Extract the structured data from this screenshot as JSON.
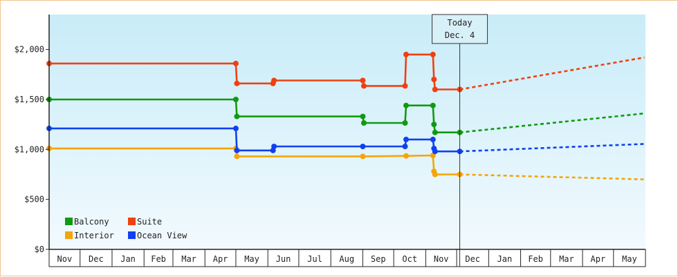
{
  "chart_data": {
    "type": "line",
    "x_axis_type": "date",
    "ylim": [
      0,
      2350
    ],
    "y_ticks": [
      {
        "value": 0,
        "label": "$0"
      },
      {
        "value": 500,
        "label": "$500"
      },
      {
        "value": 1000,
        "label": "$1,000"
      },
      {
        "value": 1500,
        "label": "$1,500"
      },
      {
        "value": 2000,
        "label": "$2,000"
      }
    ],
    "x_range": [
      "2014-11-01",
      "2016-05-31"
    ],
    "months": [
      {
        "label": "Nov",
        "start": "2014-11-01"
      },
      {
        "label": "Dec",
        "start": "2014-12-01"
      },
      {
        "label": "Jan",
        "start": "2015-01-01"
      },
      {
        "label": "Feb",
        "start": "2015-02-01"
      },
      {
        "label": "Mar",
        "start": "2015-03-01"
      },
      {
        "label": "Apr",
        "start": "2015-04-01"
      },
      {
        "label": "May",
        "start": "2015-05-01"
      },
      {
        "label": "Jun",
        "start": "2015-06-01"
      },
      {
        "label": "Jul",
        "start": "2015-07-01"
      },
      {
        "label": "Aug",
        "start": "2015-08-01"
      },
      {
        "label": "Sep",
        "start": "2015-09-01"
      },
      {
        "label": "Oct",
        "start": "2015-10-01"
      },
      {
        "label": "Nov",
        "start": "2015-11-01"
      },
      {
        "label": "Dec",
        "start": "2015-12-01"
      },
      {
        "label": "Jan",
        "start": "2016-01-01"
      },
      {
        "label": "Feb",
        "start": "2016-02-01"
      },
      {
        "label": "Mar",
        "start": "2016-03-01"
      },
      {
        "label": "Apr",
        "start": "2016-04-01"
      },
      {
        "label": "May",
        "start": "2016-05-01"
      }
    ],
    "today": {
      "date": "2015-12-04",
      "line1": "Today",
      "line2": "Dec. 4"
    },
    "legend_position": "bottom-left",
    "series": [
      {
        "name": "Balcony",
        "color": "#0f9a0f",
        "points": [
          {
            "x": "2014-11-01",
            "y": 1500
          },
          {
            "x": "2015-05-01",
            "y": 1500
          },
          {
            "x": "2015-05-02",
            "y": 1330
          },
          {
            "x": "2015-09-01",
            "y": 1330
          },
          {
            "x": "2015-09-02",
            "y": 1265
          },
          {
            "x": "2015-10-12",
            "y": 1265
          },
          {
            "x": "2015-10-13",
            "y": 1440
          },
          {
            "x": "2015-11-08",
            "y": 1440
          },
          {
            "x": "2015-11-09",
            "y": 1250
          },
          {
            "x": "2015-11-10",
            "y": 1170
          },
          {
            "x": "2015-12-04",
            "y": 1170
          }
        ],
        "forecast": [
          {
            "x": "2015-12-04",
            "y": 1170
          },
          {
            "x": "2016-05-31",
            "y": 1360
          }
        ]
      },
      {
        "name": "Suite",
        "color": "#f04010",
        "points": [
          {
            "x": "2014-11-01",
            "y": 1860
          },
          {
            "x": "2015-05-01",
            "y": 1860
          },
          {
            "x": "2015-05-02",
            "y": 1660
          },
          {
            "x": "2015-06-06",
            "y": 1660
          },
          {
            "x": "2015-06-07",
            "y": 1690
          },
          {
            "x": "2015-09-01",
            "y": 1690
          },
          {
            "x": "2015-09-02",
            "y": 1635
          },
          {
            "x": "2015-10-12",
            "y": 1635
          },
          {
            "x": "2015-10-13",
            "y": 1950
          },
          {
            "x": "2015-11-08",
            "y": 1950
          },
          {
            "x": "2015-11-09",
            "y": 1700
          },
          {
            "x": "2015-11-10",
            "y": 1600
          },
          {
            "x": "2015-12-04",
            "y": 1600
          }
        ],
        "forecast": [
          {
            "x": "2015-12-04",
            "y": 1600
          },
          {
            "x": "2016-05-31",
            "y": 1920
          }
        ]
      },
      {
        "name": "Interior",
        "color": "#f5a40a",
        "points": [
          {
            "x": "2014-11-01",
            "y": 1010
          },
          {
            "x": "2015-05-01",
            "y": 1010
          },
          {
            "x": "2015-05-02",
            "y": 930
          },
          {
            "x": "2015-09-01",
            "y": 930
          },
          {
            "x": "2015-10-13",
            "y": 935
          },
          {
            "x": "2015-11-08",
            "y": 940
          },
          {
            "x": "2015-11-09",
            "y": 780
          },
          {
            "x": "2015-11-10",
            "y": 750
          },
          {
            "x": "2015-12-04",
            "y": 750
          }
        ],
        "forecast": [
          {
            "x": "2015-12-04",
            "y": 750
          },
          {
            "x": "2016-05-31",
            "y": 700
          }
        ]
      },
      {
        "name": "Ocean View",
        "color": "#1040f0",
        "points": [
          {
            "x": "2014-11-01",
            "y": 1210
          },
          {
            "x": "2015-05-01",
            "y": 1210
          },
          {
            "x": "2015-05-02",
            "y": 990
          },
          {
            "x": "2015-06-06",
            "y": 990
          },
          {
            "x": "2015-06-07",
            "y": 1030
          },
          {
            "x": "2015-09-01",
            "y": 1030
          },
          {
            "x": "2015-10-12",
            "y": 1030
          },
          {
            "x": "2015-10-13",
            "y": 1100
          },
          {
            "x": "2015-11-08",
            "y": 1100
          },
          {
            "x": "2015-11-09",
            "y": 1010
          },
          {
            "x": "2015-11-10",
            "y": 980
          },
          {
            "x": "2015-12-04",
            "y": 980
          }
        ],
        "forecast": [
          {
            "x": "2015-12-04",
            "y": 980
          },
          {
            "x": "2016-05-31",
            "y": 1055
          }
        ]
      }
    ],
    "colors": {
      "plot_top": "#c8ecf8",
      "plot_bottom": "#f2fafe",
      "frame_border": "#f2c48a",
      "axis": "#222222",
      "today_box_fill": "#d8f0f8",
      "today_box_border": "#333333"
    }
  }
}
